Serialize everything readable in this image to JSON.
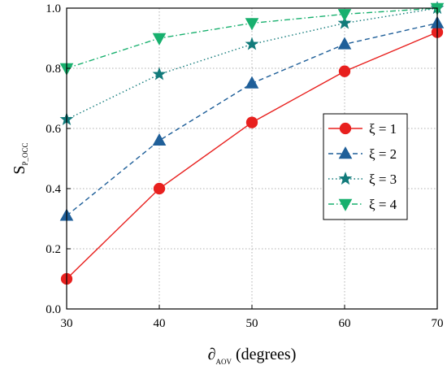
{
  "chart_data": {
    "type": "line",
    "x": [
      30,
      40,
      50,
      60,
      70
    ],
    "xlim": [
      30,
      70
    ],
    "ylim": [
      0.0,
      1.0
    ],
    "xticks": [
      "30",
      "40",
      "50",
      "60",
      "70"
    ],
    "yticks": [
      "0.0",
      "0.2",
      "0.4",
      "0.6",
      "0.8",
      "1.0"
    ],
    "xlabel": {
      "main": "∂",
      "sub": "AOV",
      "suffix": " (degrees)"
    },
    "ylabel": {
      "main": "S",
      "sub": "P_OCC"
    },
    "grid": true,
    "legend_position": "center-right",
    "series": [
      {
        "name": "ξ = 1",
        "values": [
          0.1,
          0.4,
          0.62,
          0.79,
          0.92
        ],
        "color": "#e8201e",
        "marker": "circle",
        "dash": "solid"
      },
      {
        "name": "ξ = 2",
        "values": [
          0.31,
          0.56,
          0.75,
          0.88,
          0.95
        ],
        "color": "#1f5f99",
        "marker": "triangle-up",
        "dash": "dashed"
      },
      {
        "name": "ξ = 3",
        "values": [
          0.63,
          0.78,
          0.88,
          0.95,
          1.0
        ],
        "color": "#117a7a",
        "marker": "star",
        "dash": "dotted"
      },
      {
        "name": "ξ = 4",
        "values": [
          0.8,
          0.9,
          0.95,
          0.98,
          1.0
        ],
        "color": "#18b06e",
        "marker": "triangle-down",
        "dash": "dashdot"
      }
    ]
  }
}
